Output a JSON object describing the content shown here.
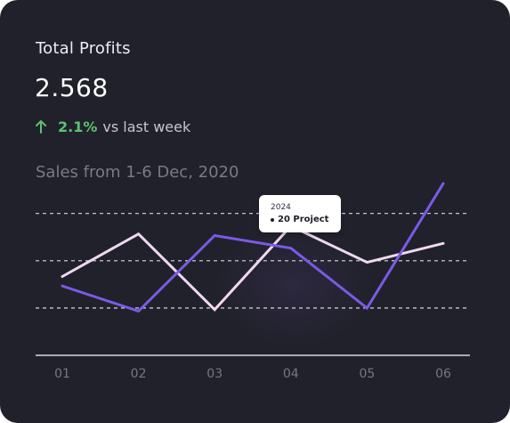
{
  "card": {
    "title": "Total Profits",
    "value": "2.568",
    "change": {
      "percent": "2.1%",
      "suffix": "vs last week",
      "direction": "up",
      "icon": "arrow-up-icon",
      "color": "#5bc373"
    },
    "subtitle": "Sales from 1-6 Dec, 2020"
  },
  "colors": {
    "background": "#21212b",
    "series_light": "#f0d8f0",
    "series_purple": "#7b5ae6",
    "gridline": "#d8d8e0",
    "baseline": "#d8d8e0"
  },
  "tooltip": {
    "year": "2024",
    "label": "20 Project"
  },
  "chart_data": {
    "type": "line",
    "categories": [
      "01",
      "02",
      "03",
      "04",
      "05",
      "06"
    ],
    "ylim": [
      0,
      100
    ],
    "gridlines": [
      30,
      60,
      90
    ],
    "series": [
      {
        "key": "light",
        "color": "#f0d8f0",
        "values": [
          50,
          77,
          29,
          82,
          59,
          71
        ]
      },
      {
        "key": "purple",
        "color": "#7b5ae6",
        "values": [
          44,
          28,
          76,
          68,
          30,
          109
        ]
      }
    ]
  }
}
